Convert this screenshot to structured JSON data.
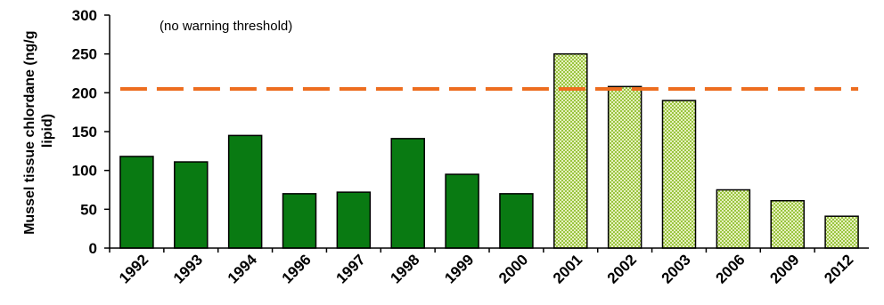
{
  "chart_data": {
    "type": "bar",
    "title": "",
    "xlabel": "",
    "ylabel": "Mussel tissue chlordane (ng/g lipid)",
    "ylabel_lines": [
      "Mussel tissue chlordane (ng/g",
      "lipid)"
    ],
    "categories": [
      "1992",
      "1993",
      "1994",
      "1996",
      "1997",
      "1998",
      "1999",
      "2000",
      "2001",
      "2002",
      "2003",
      "2006",
      "2009",
      "2012"
    ],
    "values": [
      118,
      111,
      145,
      70,
      72,
      141,
      95,
      70,
      250,
      208,
      190,
      75,
      61,
      41
    ],
    "bar_styles": [
      "solid",
      "solid",
      "solid",
      "solid",
      "solid",
      "solid",
      "solid",
      "solid",
      "checkered",
      "checkered",
      "checkered",
      "checkered",
      "checkered",
      "checkered"
    ],
    "ylim": [
      0,
      300
    ],
    "yticks": [
      0,
      50,
      100,
      150,
      200,
      250,
      300
    ],
    "grid": false,
    "legend": "none",
    "threshold_line": {
      "value": 205,
      "style": "dashed",
      "color": "#ed6d1f"
    },
    "annotations": [
      "(no warning threshold)"
    ],
    "colors": {
      "solid_bar": "#097a12",
      "checkered_light": "#e6f0bf",
      "checkered_dark": "#9ac53f",
      "bar_outline": "#000000",
      "threshold": "#ed6d1f"
    }
  }
}
